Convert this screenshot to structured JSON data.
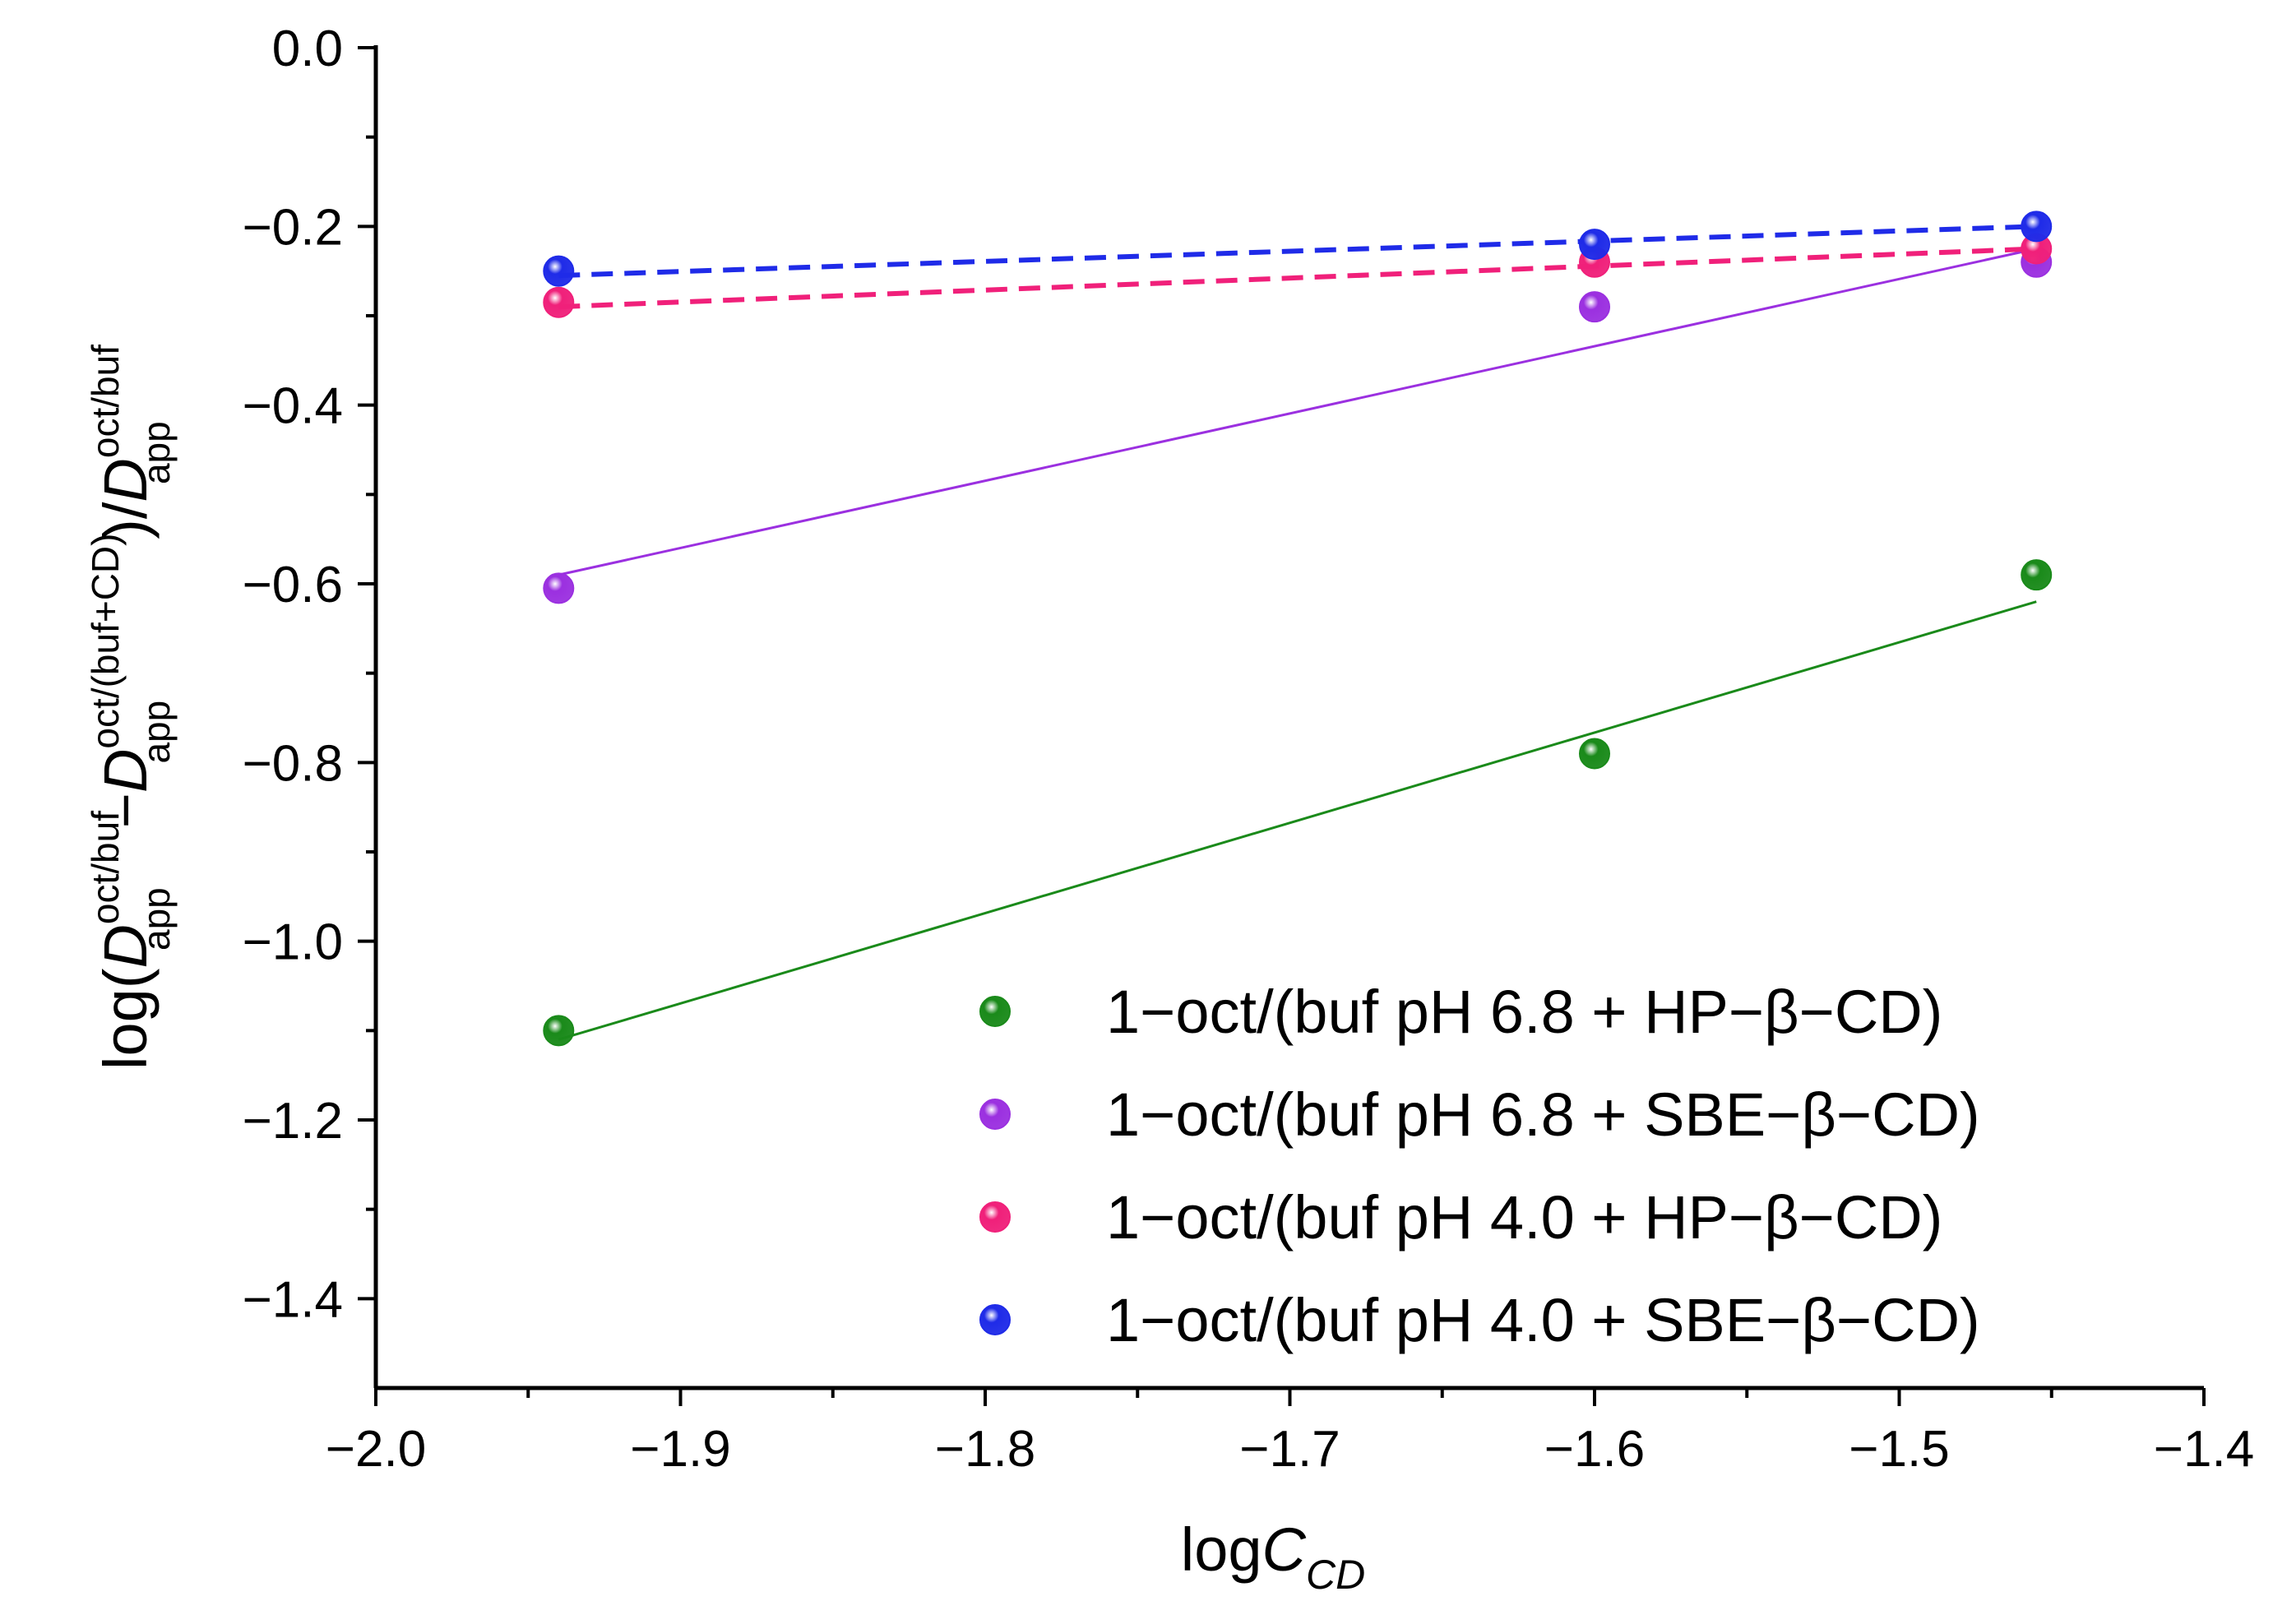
{
  "chart_data": {
    "type": "scatter",
    "title": "",
    "xlabel": {
      "main": "log",
      "italic": "C",
      "sub": "CD"
    },
    "ylabel": {
      "prefix": "log(",
      "d": "D",
      "sup1": "oct/buf",
      "sub1": "app",
      "minus": "−",
      "sup2": "oct/(buf+CD)",
      "sub2": "app",
      "mid": ")/",
      "sup3": "oct/buf",
      "sub3": "app"
    },
    "xlim": [
      -2.0,
      -1.4
    ],
    "ylim": [
      -1.5,
      0.0
    ],
    "xticks": [
      -2.0,
      -1.9,
      -1.8,
      -1.7,
      -1.6,
      -1.5,
      -1.4
    ],
    "xtick_labels": [
      "−2.0",
      "−1.9",
      "−1.8",
      "−1.7",
      "−1.6",
      "−1.5",
      "−1.4"
    ],
    "yticks": [
      0.0,
      -0.2,
      -0.4,
      -0.6,
      -0.8,
      -1.0,
      -1.2,
      -1.4
    ],
    "ytick_labels": [
      "0.0",
      "−0.2",
      "−0.4",
      "−0.6",
      "−0.8",
      "−1.0",
      "−1.2",
      "−1.4"
    ],
    "grid": false,
    "legend_position": "bottom-right",
    "series": [
      {
        "name": "1−oct/(buf pH 6.8 + HP−β−CD)",
        "color": "#1a8a1a",
        "line_style": "solid",
        "x": [
          -1.94,
          -1.6,
          -1.455
        ],
        "y": [
          -1.1,
          -0.79,
          -0.59
        ],
        "fit": {
          "x": [
            -1.94,
            -1.455
          ],
          "y": [
            -1.11,
            -0.62
          ]
        }
      },
      {
        "name": "1−oct/(buf pH 6.8 + SBE−β−CD)",
        "color": "#9b30e0",
        "line_style": "solid",
        "x": [
          -1.94,
          -1.6,
          -1.455
        ],
        "y": [
          -0.605,
          -0.29,
          -0.24
        ],
        "fit": {
          "x": [
            -1.94,
            -1.455
          ],
          "y": [
            -0.59,
            -0.225
          ]
        }
      },
      {
        "name": "1−oct/(buf pH 4.0 + HP−β−CD)",
        "color": "#f0207a",
        "line_style": "dashed",
        "x": [
          -1.94,
          -1.6,
          -1.455
        ],
        "y": [
          -0.285,
          -0.24,
          -0.225
        ],
        "fit": {
          "x": [
            -1.94,
            -1.455
          ],
          "y": [
            -0.29,
            -0.225
          ]
        }
      },
      {
        "name": "1−oct/(buf pH 4.0 + SBE−β−CD)",
        "color": "#1f2be8",
        "line_style": "dashed",
        "x": [
          -1.94,
          -1.6,
          -1.455
        ],
        "y": [
          -0.25,
          -0.22,
          -0.2
        ],
        "fit": {
          "x": [
            -1.94,
            -1.455
          ],
          "y": [
            -0.255,
            -0.2
          ]
        }
      }
    ]
  }
}
